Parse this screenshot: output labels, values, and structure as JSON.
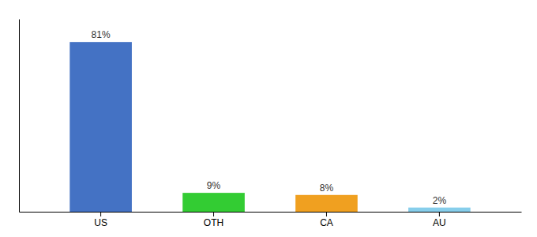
{
  "chart_data": {
    "type": "bar",
    "categories": [
      "US",
      "OTH",
      "CA",
      "AU"
    ],
    "values": [
      81,
      9,
      8,
      2
    ],
    "colors": [
      "#4472c4",
      "#33cc33",
      "#f0a020",
      "#87ceeb"
    ],
    "data_labels": true,
    "value_labels": [
      "81%",
      "9%",
      "8%",
      "2%"
    ],
    "ylim": [
      0,
      92
    ],
    "tick_labels": "x"
  }
}
